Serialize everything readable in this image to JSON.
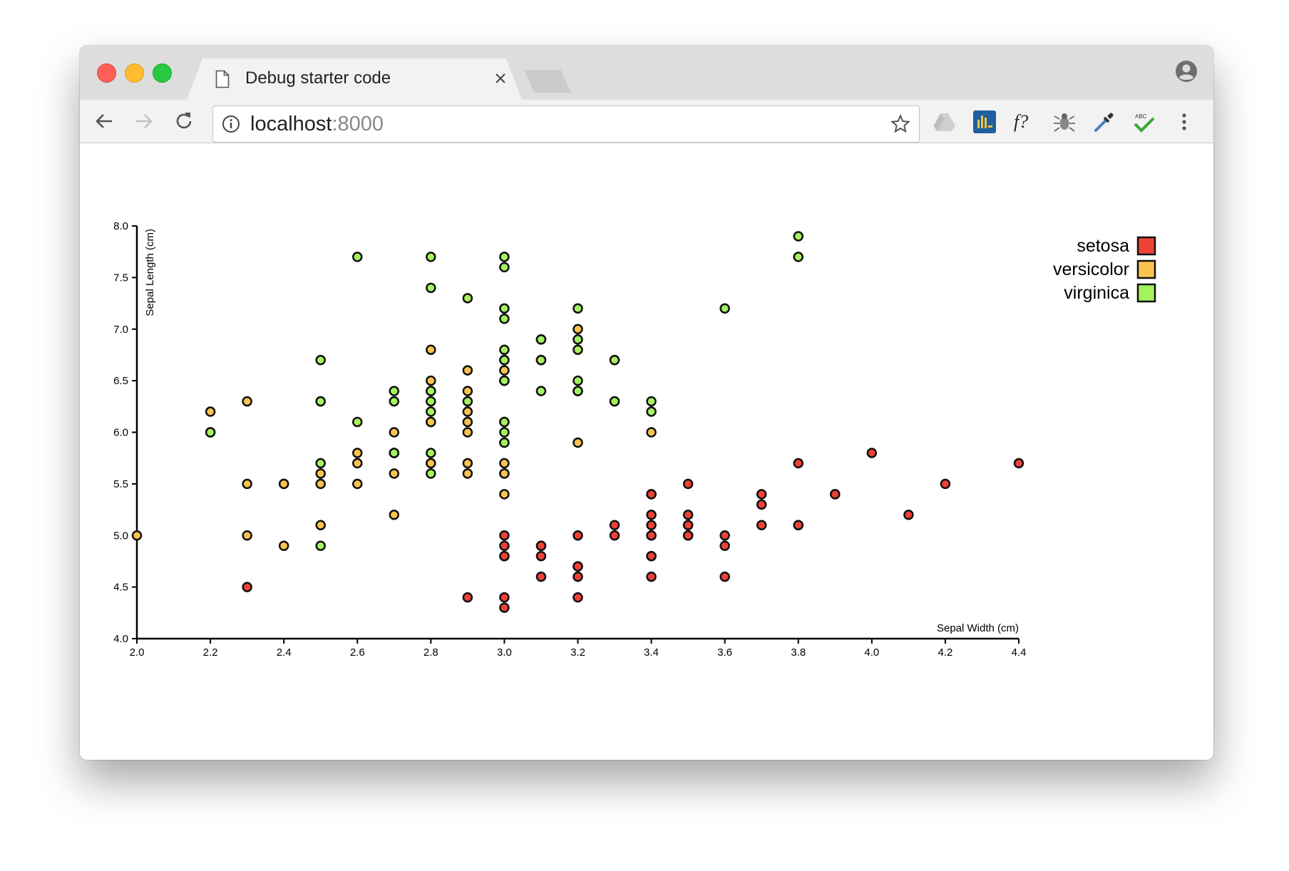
{
  "browser": {
    "tab_title": "Debug starter code",
    "url_host": "localhost",
    "url_port": ":8000"
  },
  "colors": {
    "setosa": "#ef4136",
    "versicolor": "#fbc34e",
    "virginica": "#a4f25c"
  },
  "icons": [
    "back-icon",
    "forward-icon",
    "reload-icon",
    "info-icon",
    "star-icon",
    "drive-icon",
    "chart-extension-icon",
    "function-extension-icon",
    "bug-extension-icon",
    "eyedropper-icon",
    "spellcheck-icon",
    "menu-icon",
    "profile-icon",
    "page-icon",
    "close-icon"
  ],
  "chart_data": {
    "type": "scatter",
    "xlabel": "Sepal Width (cm)",
    "ylabel": "Sepal Length (cm)",
    "xlim": [
      2.0,
      4.4
    ],
    "ylim": [
      4.0,
      8.0
    ],
    "xticks": [
      "2.0",
      "2.2",
      "2.4",
      "2.6",
      "2.8",
      "3.0",
      "3.2",
      "3.4",
      "3.6",
      "3.8",
      "4.0",
      "4.2",
      "4.4"
    ],
    "yticks": [
      "4.0",
      "4.5",
      "5.0",
      "5.5",
      "6.0",
      "6.5",
      "7.0",
      "7.5",
      "8.0"
    ],
    "legend_position": "top-right",
    "series": [
      {
        "name": "setosa",
        "points": [
          [
            3.5,
            5.1
          ],
          [
            3.0,
            4.9
          ],
          [
            3.2,
            4.7
          ],
          [
            3.1,
            4.6
          ],
          [
            3.6,
            5.0
          ],
          [
            3.9,
            5.4
          ],
          [
            3.4,
            4.6
          ],
          [
            3.4,
            5.0
          ],
          [
            2.9,
            4.4
          ],
          [
            3.1,
            4.9
          ],
          [
            3.7,
            5.4
          ],
          [
            3.4,
            4.8
          ],
          [
            3.0,
            4.8
          ],
          [
            3.0,
            4.3
          ],
          [
            4.0,
            5.8
          ],
          [
            4.4,
            5.7
          ],
          [
            3.9,
            5.4
          ],
          [
            3.5,
            5.1
          ],
          [
            3.8,
            5.7
          ],
          [
            3.8,
            5.1
          ],
          [
            3.4,
            5.4
          ],
          [
            3.7,
            5.1
          ],
          [
            3.6,
            4.6
          ],
          [
            3.3,
            5.1
          ],
          [
            3.4,
            4.8
          ],
          [
            3.0,
            5.0
          ],
          [
            3.4,
            5.0
          ],
          [
            3.5,
            5.2
          ],
          [
            3.4,
            5.2
          ],
          [
            3.2,
            4.7
          ],
          [
            3.1,
            4.8
          ],
          [
            3.4,
            5.4
          ],
          [
            4.1,
            5.2
          ],
          [
            4.2,
            5.5
          ],
          [
            3.1,
            4.9
          ],
          [
            3.2,
            5.0
          ],
          [
            3.5,
            5.5
          ],
          [
            3.6,
            4.9
          ],
          [
            3.0,
            4.4
          ],
          [
            3.4,
            5.1
          ],
          [
            3.5,
            5.0
          ],
          [
            2.3,
            4.5
          ],
          [
            3.2,
            4.4
          ],
          [
            3.5,
            5.0
          ],
          [
            3.8,
            5.1
          ],
          [
            3.0,
            4.8
          ],
          [
            3.8,
            5.1
          ],
          [
            3.2,
            4.6
          ],
          [
            3.7,
            5.3
          ],
          [
            3.3,
            5.0
          ]
        ]
      },
      {
        "name": "versicolor",
        "points": [
          [
            3.2,
            7.0
          ],
          [
            3.2,
            6.4
          ],
          [
            3.1,
            6.9
          ],
          [
            2.3,
            5.5
          ],
          [
            2.8,
            6.5
          ],
          [
            2.8,
            5.7
          ],
          [
            3.3,
            6.3
          ],
          [
            2.4,
            4.9
          ],
          [
            2.9,
            6.6
          ],
          [
            2.7,
            5.2
          ],
          [
            2.0,
            5.0
          ],
          [
            3.0,
            5.9
          ],
          [
            2.2,
            6.0
          ],
          [
            2.9,
            6.1
          ],
          [
            2.9,
            5.6
          ],
          [
            3.1,
            6.7
          ],
          [
            3.0,
            5.6
          ],
          [
            2.7,
            5.8
          ],
          [
            2.2,
            6.2
          ],
          [
            2.5,
            5.6
          ],
          [
            3.2,
            5.9
          ],
          [
            2.8,
            6.1
          ],
          [
            2.5,
            6.3
          ],
          [
            2.8,
            6.1
          ],
          [
            2.9,
            6.4
          ],
          [
            3.0,
            6.6
          ],
          [
            2.8,
            6.8
          ],
          [
            3.0,
            6.7
          ],
          [
            2.9,
            6.0
          ],
          [
            2.6,
            5.7
          ],
          [
            2.4,
            5.5
          ],
          [
            2.4,
            5.5
          ],
          [
            2.7,
            5.8
          ],
          [
            2.7,
            6.0
          ],
          [
            3.0,
            5.4
          ],
          [
            3.4,
            6.0
          ],
          [
            3.1,
            6.7
          ],
          [
            2.3,
            6.3
          ],
          [
            3.0,
            5.6
          ],
          [
            2.5,
            5.5
          ],
          [
            2.6,
            5.5
          ],
          [
            3.0,
            6.1
          ],
          [
            2.6,
            5.8
          ],
          [
            2.3,
            5.0
          ],
          [
            2.7,
            5.6
          ],
          [
            3.0,
            5.7
          ],
          [
            2.9,
            5.7
          ],
          [
            2.9,
            6.2
          ],
          [
            2.5,
            5.1
          ],
          [
            2.8,
            5.7
          ]
        ]
      },
      {
        "name": "virginica",
        "points": [
          [
            3.3,
            6.3
          ],
          [
            2.7,
            5.8
          ],
          [
            3.0,
            7.1
          ],
          [
            2.9,
            6.3
          ],
          [
            3.0,
            6.5
          ],
          [
            3.0,
            7.6
          ],
          [
            2.5,
            4.9
          ],
          [
            2.9,
            7.3
          ],
          [
            2.5,
            6.7
          ],
          [
            3.6,
            7.2
          ],
          [
            3.2,
            6.5
          ],
          [
            2.7,
            6.4
          ],
          [
            3.0,
            6.8
          ],
          [
            2.5,
            5.7
          ],
          [
            2.8,
            5.8
          ],
          [
            3.2,
            6.4
          ],
          [
            3.0,
            6.5
          ],
          [
            3.8,
            7.7
          ],
          [
            2.6,
            7.7
          ],
          [
            2.2,
            6.0
          ],
          [
            3.2,
            6.9
          ],
          [
            2.8,
            5.6
          ],
          [
            2.8,
            7.7
          ],
          [
            2.7,
            6.3
          ],
          [
            3.3,
            6.7
          ],
          [
            3.2,
            7.2
          ],
          [
            2.8,
            6.2
          ],
          [
            3.0,
            6.1
          ],
          [
            2.8,
            6.4
          ],
          [
            3.0,
            7.2
          ],
          [
            2.8,
            7.4
          ],
          [
            3.8,
            7.9
          ],
          [
            2.8,
            6.4
          ],
          [
            2.8,
            6.3
          ],
          [
            2.6,
            6.1
          ],
          [
            3.0,
            7.7
          ],
          [
            3.4,
            6.3
          ],
          [
            3.1,
            6.4
          ],
          [
            3.0,
            6.0
          ],
          [
            3.1,
            6.9
          ],
          [
            3.1,
            6.7
          ],
          [
            3.1,
            6.9
          ],
          [
            2.7,
            5.8
          ],
          [
            3.2,
            6.8
          ],
          [
            3.3,
            6.7
          ],
          [
            3.0,
            6.7
          ],
          [
            2.5,
            6.3
          ],
          [
            3.0,
            6.5
          ],
          [
            3.4,
            6.2
          ],
          [
            3.0,
            5.9
          ]
        ]
      }
    ]
  }
}
